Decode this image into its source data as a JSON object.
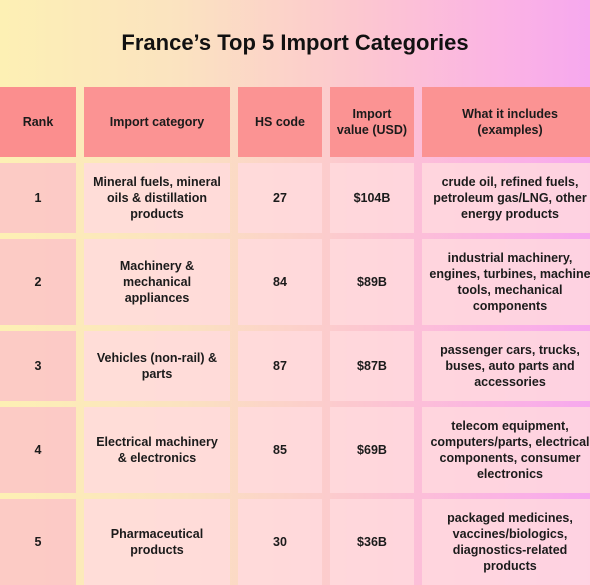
{
  "title": "France’s Top 5 Import Categories",
  "table": {
    "headers": [
      "Rank",
      "Import category",
      "HS code",
      "Import value (USD)",
      "What it includes (examples)"
    ],
    "rows": [
      {
        "rank": "1",
        "category": "Mineral fuels, mineral oils & distillation products",
        "hs_code": "27",
        "value": "$104B",
        "includes": "crude oil, refined fuels, petroleum gas/LNG, other energy products"
      },
      {
        "rank": "2",
        "category": "Machinery & mechanical appliances",
        "hs_code": "84",
        "value": "$89B",
        "includes": "industrial machinery, engines, turbines, machine tools, mechanical components"
      },
      {
        "rank": "3",
        "category": "Vehicles (non-rail) & parts",
        "hs_code": "87",
        "value": "$87B",
        "includes": "passenger cars, trucks, buses, auto parts and accessories"
      },
      {
        "rank": "4",
        "category": "Electrical machinery & electronics",
        "hs_code": "85",
        "value": "$69B",
        "includes": "telecom equipment, computers/parts, electrical components, consumer electronics"
      },
      {
        "rank": "5",
        "category": "Pharmaceutical products",
        "hs_code": "30",
        "value": "$36B",
        "includes": "packaged medicines, vaccines/biologics, diagnostics-related products"
      }
    ]
  },
  "colors": {
    "header_cell": "#fb9393",
    "body_cell": "#ffdade",
    "rank_cell": "#fbc4c8",
    "background_left": "#fdf0b4",
    "background_right": "#f6a8ee"
  }
}
